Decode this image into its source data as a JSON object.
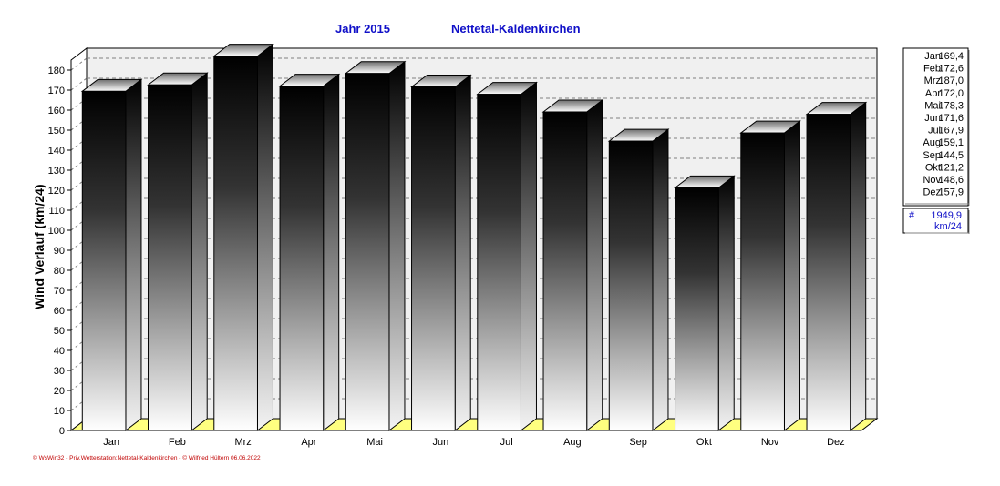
{
  "chart_data": {
    "type": "bar",
    "title": "Jahr  2015",
    "subtitle": "Nettetal-Kaldenkirchen",
    "ylabel": "Wind Verlauf  (km/24)",
    "xlabel": "",
    "categories": [
      "Jan",
      "Feb",
      "Mrz",
      "Apr",
      "Mai",
      "Jun",
      "Jul",
      "Aug",
      "Sep",
      "Okt",
      "Nov",
      "Dez"
    ],
    "values": [
      169.4,
      172.6,
      187.0,
      172.0,
      178.3,
      171.6,
      167.9,
      159.1,
      144.5,
      121.2,
      148.6,
      157.9
    ],
    "ylim": [
      0,
      185
    ],
    "yticks": [
      0,
      10,
      20,
      30,
      40,
      50,
      60,
      70,
      80,
      90,
      100,
      110,
      120,
      130,
      140,
      150,
      160,
      170,
      180
    ],
    "grid": true,
    "legend_position": "right",
    "legend": [
      {
        "label": "Jan",
        "value": "169,4"
      },
      {
        "label": "Feb",
        "value": "172,6"
      },
      {
        "label": "Mrz",
        "value": "187,0"
      },
      {
        "label": "Apr",
        "value": "172,0"
      },
      {
        "label": "Mai",
        "value": "178,3"
      },
      {
        "label": "Jun",
        "value": "171,6"
      },
      {
        "label": "Jul",
        "value": "167,9"
      },
      {
        "label": "Aug",
        "value": "159,1"
      },
      {
        "label": "Sep",
        "value": "144,5"
      },
      {
        "label": "Okt",
        "value": "121,2"
      },
      {
        "label": "Nov",
        "value": "148,6"
      },
      {
        "label": "Dez",
        "value": "157,9"
      }
    ],
    "total_symbol": "#",
    "total": "1949,9",
    "total_unit": "km/24",
    "footer": "© WsWin32 - Priv.Wetterstation:Nettetal-Kaldenkirchen - © Wilfried Hültern 06.06.2022"
  },
  "colors": {
    "title": "#1010c8",
    "floor": "#ffff80",
    "grid": "#808080",
    "footer": "#c00000"
  }
}
